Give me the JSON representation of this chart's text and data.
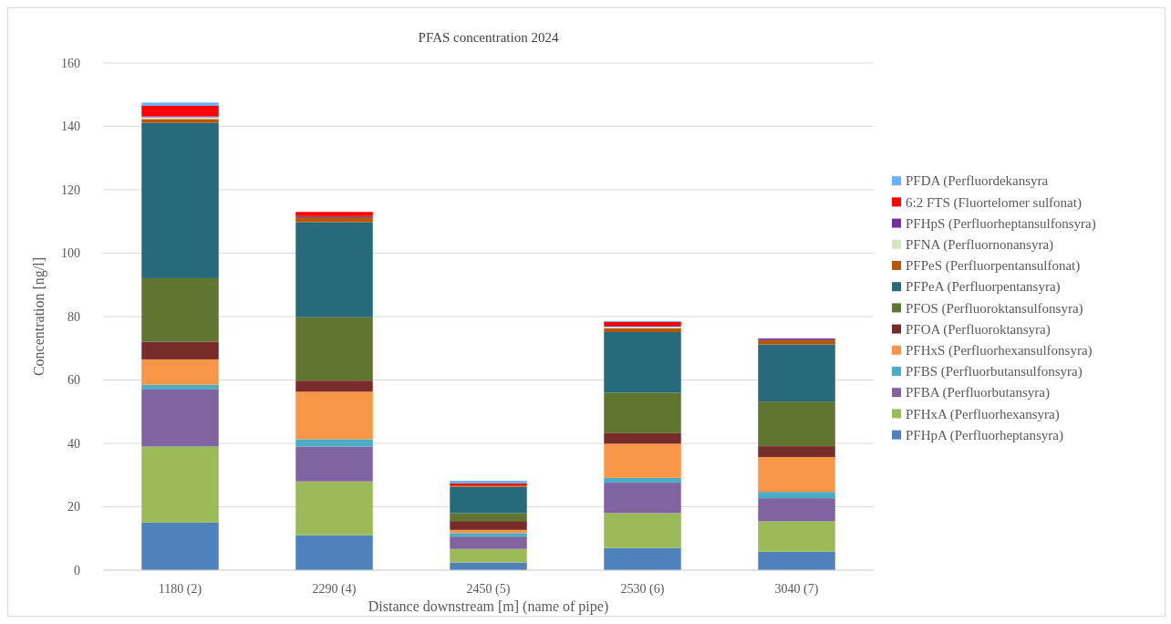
{
  "chart_data": {
    "type": "bar",
    "stacked": true,
    "title": "PFAS concentration 2024",
    "xlabel": "Distance downstream [m] (name of pipe)",
    "ylabel": "Concentration [ng/l]",
    "categories": [
      "1180 (2)",
      "2290 (4)",
      "2450 (5)",
      "2530 (6)",
      "3040 (7)"
    ],
    "series": [
      {
        "name": "PFHpA (Perfluorheptansyra)",
        "color": "#4f81bd",
        "values": [
          15,
          11,
          2.4,
          7,
          5.8
        ]
      },
      {
        "name": "PFHxA (Perfluorhexansyra)",
        "color": "#9bbb59",
        "values": [
          24,
          17,
          4.3,
          11,
          9.6
        ]
      },
      {
        "name": "PFBA (Perfluorbutansyra)",
        "color": "#8064a2",
        "values": [
          18,
          11,
          3.9,
          9.6,
          7.3
        ]
      },
      {
        "name": "PFBS (Perfluorbutansulfonsyra)",
        "color": "#4bacc6",
        "values": [
          1.5,
          2.3,
          1.1,
          1.5,
          2
        ]
      },
      {
        "name": "PFHxS (Perfluorhexansulfonsyra)",
        "color": "#f79646",
        "values": [
          8,
          15,
          1,
          10.8,
          11
        ]
      },
      {
        "name": "PFOA (Perfluoroktansyra)",
        "color": "#772c2a",
        "values": [
          5.6,
          3.5,
          2.8,
          3.3,
          3.4
        ]
      },
      {
        "name": "PFOS (Perfluoroktansulfonsyra)",
        "color": "#5f7530",
        "values": [
          20,
          20,
          2.5,
          12.8,
          14.1
        ]
      },
      {
        "name": "PFPeA (Perfluorpentansyra)",
        "color": "#276a7c",
        "values": [
          49,
          30,
          8.3,
          19.1,
          18
        ]
      },
      {
        "name": "PFPeS (Perfluorpentansulfonat)",
        "color": "#b65708",
        "values": [
          1.2,
          1.6,
          0.4,
          1.2,
          1.4
        ]
      },
      {
        "name": "PFNA (Perfluornonansyra)",
        "color": "#d7e4bd",
        "values": [
          0.6,
          null,
          null,
          0.5,
          0
        ]
      },
      {
        "name": "PFHpS (Perfluorheptansulfonsyra)",
        "color": "#7030a0",
        "values": [
          0.3,
          0.3,
          0,
          0.3,
          0.5
        ]
      },
      {
        "name": "6:2 FTS (Fluortelomer sulfonat)",
        "color": "#ff0000",
        "values": [
          3.3,
          1.3,
          0.7,
          1.2,
          0
        ]
      },
      {
        "name": "PFDA (Perfluordekansyra",
        "color": "#66b2ff",
        "values": [
          1,
          0,
          0.8,
          0.3,
          0
        ]
      }
    ],
    "ylim": [
      0,
      160
    ],
    "yticks": [
      0,
      20,
      40,
      60,
      80,
      100,
      120,
      140,
      160
    ],
    "grid": "y",
    "legend": "right"
  }
}
